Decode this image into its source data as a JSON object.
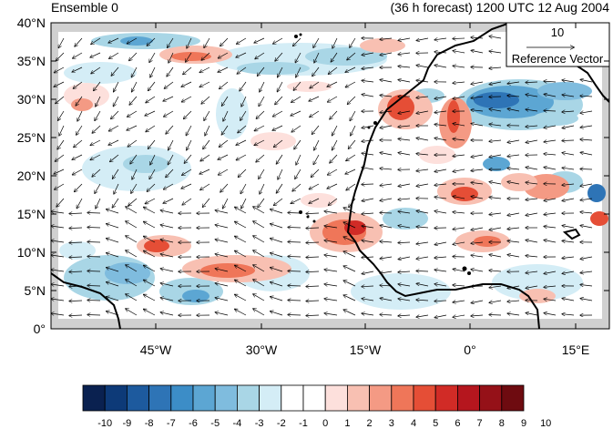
{
  "header": {
    "left_title": "Ensemble 0",
    "right_title": "(36 h forecast) 1200 UTC 12 Aug 2004"
  },
  "map": {
    "lat_labels": [
      "40°N",
      "35°N",
      "30°N",
      "25°N",
      "20°N",
      "15°N",
      "10°N",
      "5°N",
      "0°"
    ],
    "lon_labels": [
      "45°W",
      "30°W",
      "15°W",
      "0°",
      "15°E"
    ],
    "land_color": "#d9d9d9",
    "coast_color": "#000000",
    "arrow_color": "#000000"
  },
  "reference_vector": {
    "magnitude": "10",
    "label": "Reference Vector"
  },
  "colorbar": {
    "labels": [
      "-10",
      "-9",
      "-8",
      "-7",
      "-6",
      "-5",
      "-4",
      "-3",
      "-2",
      "-1",
      "0",
      "1",
      "2",
      "3",
      "4",
      "5",
      "6",
      "7",
      "8",
      "9",
      "10"
    ],
    "colors": [
      "#0a2150",
      "#0d3a78",
      "#1d5a9e",
      "#2e74b6",
      "#3c8dc7",
      "#5ca6d3",
      "#7fbcde",
      "#a9d6e6",
      "#d4edf6",
      "#ffffff",
      "#ffffff",
      "#fde0dc",
      "#f8c0b2",
      "#f49a84",
      "#ef7659",
      "#e54e36",
      "#d12b26",
      "#b5161e",
      "#951118",
      "#6e0b10"
    ]
  }
}
